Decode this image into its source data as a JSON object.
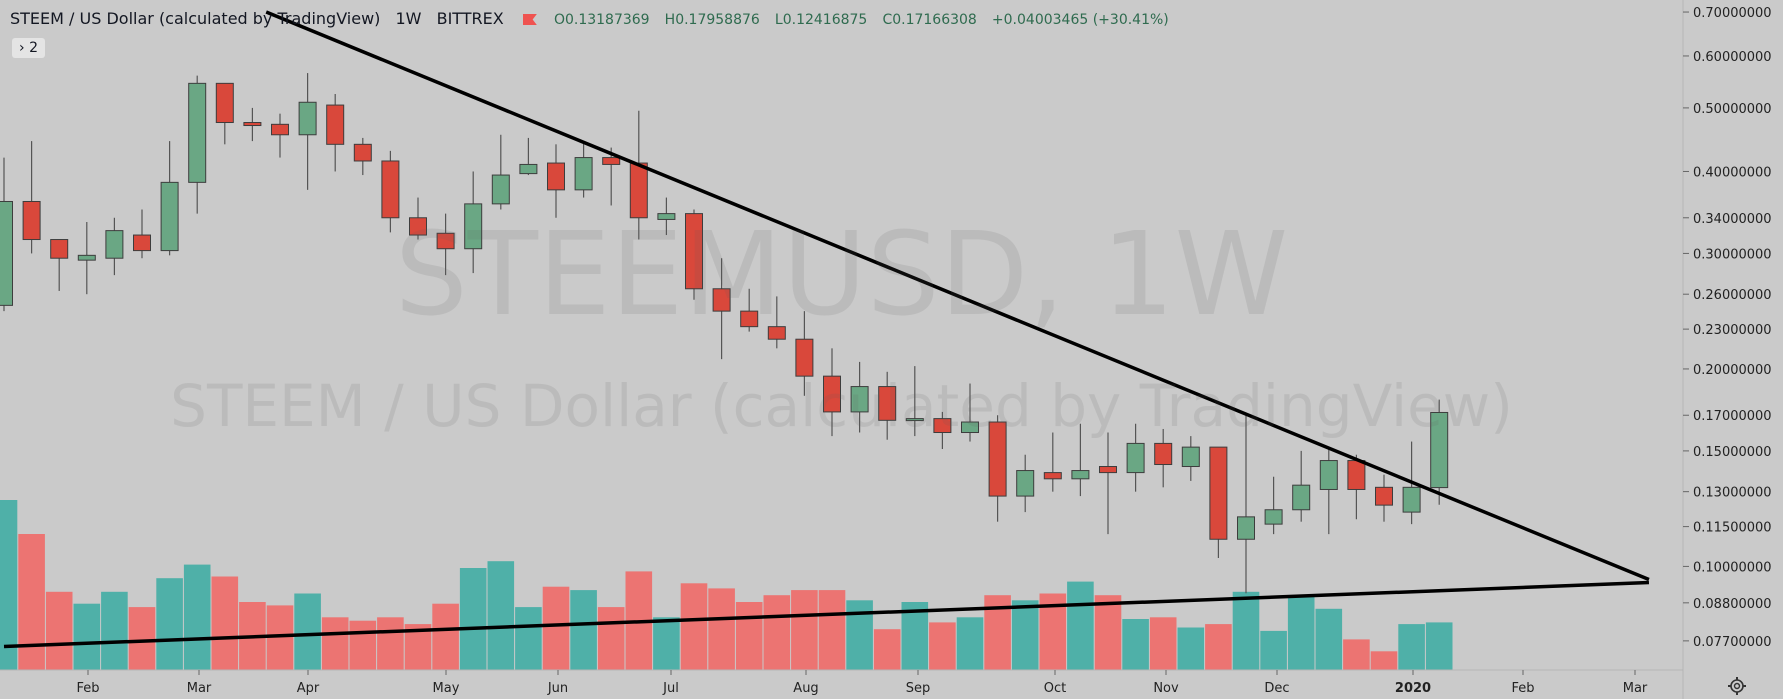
{
  "header": {
    "title": "STEEM / US Dollar (calculated by TradingView)",
    "interval": "1W",
    "exchange": "BITTREX",
    "open": "O0.13187369",
    "high": "H0.17958876",
    "low": "L0.12416875",
    "close": "C0.17166308",
    "change": "+0.04003465 (+30.41%)"
  },
  "indicator_badge": {
    "arrow": "›",
    "count": "2"
  },
  "watermark": {
    "symbol": "STEEMUSD, 1W",
    "name": "STEEM / US Dollar (calculated by TradingView)"
  },
  "colors": {
    "up": "#6aa784",
    "down": "#d9483b",
    "volume_up": "#4fb0a8",
    "volume_down": "#ec7472",
    "background": "#cacaca",
    "trendline": "#000000"
  },
  "chart_data": {
    "type": "candlestick",
    "scale": "log",
    "ylim": [
      0.072,
      0.71
    ],
    "y_ticks": [
      "0.70000000",
      "0.60000000",
      "0.50000000",
      "0.40000000",
      "0.34000000",
      "0.30000000",
      "0.26000000",
      "0.23000000",
      "0.20000000",
      "0.17000000",
      "0.15000000",
      "0.13000000",
      "0.11500000",
      "0.10000000",
      "0.08800000",
      "0.07700000"
    ],
    "x_ticks": [
      "Feb",
      "Mar",
      "Apr",
      "May",
      "Jun",
      "Jul",
      "Aug",
      "Sep",
      "Oct",
      "Nov",
      "Dec",
      "2020",
      "Feb",
      "Mar"
    ],
    "candles": [
      {
        "o": 0.25,
        "h": 0.42,
        "l": 0.245,
        "c": 0.36
      },
      {
        "o": 0.36,
        "h": 0.445,
        "l": 0.3,
        "c": 0.315
      },
      {
        "o": 0.315,
        "h": 0.315,
        "l": 0.263,
        "c": 0.295
      },
      {
        "o": 0.293,
        "h": 0.335,
        "l": 0.26,
        "c": 0.298
      },
      {
        "o": 0.295,
        "h": 0.34,
        "l": 0.278,
        "c": 0.325
      },
      {
        "o": 0.32,
        "h": 0.35,
        "l": 0.295,
        "c": 0.303
      },
      {
        "o": 0.303,
        "h": 0.445,
        "l": 0.298,
        "c": 0.385
      },
      {
        "o": 0.385,
        "h": 0.56,
        "l": 0.345,
        "c": 0.545
      },
      {
        "o": 0.545,
        "h": 0.545,
        "l": 0.44,
        "c": 0.475
      },
      {
        "o": 0.475,
        "h": 0.5,
        "l": 0.445,
        "c": 0.47
      },
      {
        "o": 0.472,
        "h": 0.49,
        "l": 0.42,
        "c": 0.455
      },
      {
        "o": 0.455,
        "h": 0.565,
        "l": 0.375,
        "c": 0.51
      },
      {
        "o": 0.505,
        "h": 0.525,
        "l": 0.4,
        "c": 0.44
      },
      {
        "o": 0.44,
        "h": 0.45,
        "l": 0.395,
        "c": 0.415
      },
      {
        "o": 0.415,
        "h": 0.43,
        "l": 0.323,
        "c": 0.34
      },
      {
        "o": 0.34,
        "h": 0.365,
        "l": 0.315,
        "c": 0.32
      },
      {
        "o": 0.322,
        "h": 0.345,
        "l": 0.278,
        "c": 0.305
      },
      {
        "o": 0.305,
        "h": 0.4,
        "l": 0.28,
        "c": 0.357
      },
      {
        "o": 0.357,
        "h": 0.455,
        "l": 0.35,
        "c": 0.395
      },
      {
        "o": 0.397,
        "h": 0.45,
        "l": 0.395,
        "c": 0.41
      },
      {
        "o": 0.412,
        "h": 0.44,
        "l": 0.34,
        "c": 0.375
      },
      {
        "o": 0.375,
        "h": 0.445,
        "l": 0.365,
        "c": 0.42
      },
      {
        "o": 0.42,
        "h": 0.435,
        "l": 0.355,
        "c": 0.41
      },
      {
        "o": 0.412,
        "h": 0.495,
        "l": 0.315,
        "c": 0.34
      },
      {
        "o": 0.338,
        "h": 0.365,
        "l": 0.32,
        "c": 0.345
      },
      {
        "o": 0.345,
        "h": 0.35,
        "l": 0.255,
        "c": 0.265
      },
      {
        "o": 0.265,
        "h": 0.295,
        "l": 0.207,
        "c": 0.245
      },
      {
        "o": 0.245,
        "h": 0.265,
        "l": 0.228,
        "c": 0.232
      },
      {
        "o": 0.232,
        "h": 0.258,
        "l": 0.215,
        "c": 0.222
      },
      {
        "o": 0.222,
        "h": 0.245,
        "l": 0.182,
        "c": 0.195
      },
      {
        "o": 0.195,
        "h": 0.215,
        "l": 0.158,
        "c": 0.172
      },
      {
        "o": 0.172,
        "h": 0.205,
        "l": 0.16,
        "c": 0.188
      },
      {
        "o": 0.188,
        "h": 0.198,
        "l": 0.156,
        "c": 0.167
      },
      {
        "o": 0.167,
        "h": 0.202,
        "l": 0.158,
        "c": 0.168
      },
      {
        "o": 0.168,
        "h": 0.172,
        "l": 0.151,
        "c": 0.16
      },
      {
        "o": 0.16,
        "h": 0.19,
        "l": 0.155,
        "c": 0.166
      },
      {
        "o": 0.166,
        "h": 0.17,
        "l": 0.117,
        "c": 0.128
      },
      {
        "o": 0.128,
        "h": 0.148,
        "l": 0.121,
        "c": 0.14
      },
      {
        "o": 0.139,
        "h": 0.16,
        "l": 0.13,
        "c": 0.136
      },
      {
        "o": 0.136,
        "h": 0.165,
        "l": 0.128,
        "c": 0.14
      },
      {
        "o": 0.142,
        "h": 0.16,
        "l": 0.112,
        "c": 0.139
      },
      {
        "o": 0.139,
        "h": 0.165,
        "l": 0.13,
        "c": 0.154
      },
      {
        "o": 0.154,
        "h": 0.162,
        "l": 0.132,
        "c": 0.143
      },
      {
        "o": 0.142,
        "h": 0.158,
        "l": 0.135,
        "c": 0.152
      },
      {
        "o": 0.152,
        "h": 0.152,
        "l": 0.103,
        "c": 0.11
      },
      {
        "o": 0.11,
        "h": 0.17,
        "l": 0.091,
        "c": 0.119
      },
      {
        "o": 0.116,
        "h": 0.137,
        "l": 0.112,
        "c": 0.122
      },
      {
        "o": 0.122,
        "h": 0.15,
        "l": 0.117,
        "c": 0.133
      },
      {
        "o": 0.131,
        "h": 0.152,
        "l": 0.112,
        "c": 0.145
      },
      {
        "o": 0.145,
        "h": 0.148,
        "l": 0.118,
        "c": 0.131
      },
      {
        "o": 0.132,
        "h": 0.138,
        "l": 0.117,
        "c": 0.124
      },
      {
        "o": 0.121,
        "h": 0.155,
        "l": 0.116,
        "c": 0.132
      },
      {
        "o": 0.13187369,
        "h": 0.17958876,
        "l": 0.12416875,
        "c": 0.17166308
      }
    ],
    "volume": [
      100,
      80,
      46,
      39,
      46,
      37,
      54,
      62,
      55,
      40,
      38,
      45,
      31,
      29,
      31,
      27,
      39,
      60,
      64,
      37,
      49,
      47,
      37,
      58,
      31,
      51,
      48,
      40,
      44,
      47,
      47,
      41,
      24,
      40,
      28,
      31,
      44,
      41,
      45,
      52,
      44,
      30,
      31,
      25,
      27,
      46,
      23,
      44,
      36,
      18,
      11,
      27,
      28
    ],
    "trendlines": [
      {
        "from": {
          "week": 9.5,
          "price": 0.7
        },
        "to": {
          "week": 59.6,
          "price": 0.0955
        }
      },
      {
        "from": {
          "week": 0,
          "price": 0.0755
        },
        "to": {
          "week": 59.6,
          "price": 0.0945
        }
      }
    ]
  }
}
